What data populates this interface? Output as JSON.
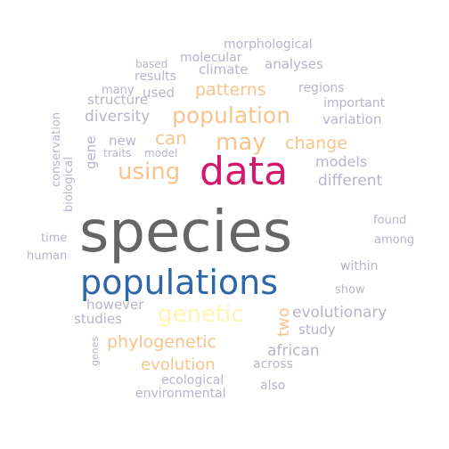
{
  "words": [
    {
      "text": "species",
      "color": "#666666"
    },
    {
      "text": "populations",
      "color": "#2e67a8"
    },
    {
      "text": "data",
      "color": "#d4186c"
    },
    {
      "text": "genetic",
      "color": "#fff4b0"
    },
    {
      "text": "population",
      "color": "#f7c48c"
    },
    {
      "text": "may",
      "color": "#f7c48c"
    },
    {
      "text": "using",
      "color": "#f7c48c"
    },
    {
      "text": "can",
      "color": "#f7c48c"
    },
    {
      "text": "patterns",
      "color": "#f7c48c"
    },
    {
      "text": "change",
      "color": "#f7c48c"
    },
    {
      "text": "phylogenetic",
      "color": "#f7c48c"
    },
    {
      "text": "evolution",
      "color": "#f7c48c"
    },
    {
      "text": "two",
      "color": "#f7c48c"
    },
    {
      "text": "evolutionary",
      "color": "#b9b4cc"
    },
    {
      "text": "different",
      "color": "#b9b4cc"
    },
    {
      "text": "models",
      "color": "#b9b4cc"
    },
    {
      "text": "diversity",
      "color": "#b9b4cc"
    },
    {
      "text": "african",
      "color": "#b9b4cc"
    },
    {
      "text": "study",
      "color": "#b9b4cc"
    },
    {
      "text": "however",
      "color": "#b9b4cc"
    },
    {
      "text": "studies",
      "color": "#b9b4cc"
    },
    {
      "text": "ecological",
      "color": "#b9b4cc"
    },
    {
      "text": "environmental",
      "color": "#b9b4cc"
    },
    {
      "text": "across",
      "color": "#b9b4cc"
    },
    {
      "text": "also",
      "color": "#b9b4cc"
    },
    {
      "text": "within",
      "color": "#b9b4cc"
    },
    {
      "text": "show",
      "color": "#b9b4cc"
    },
    {
      "text": "found",
      "color": "#b9b4cc"
    },
    {
      "text": "among",
      "color": "#b9b4cc"
    },
    {
      "text": "time",
      "color": "#b9b4cc"
    },
    {
      "text": "human",
      "color": "#b9b4cc"
    },
    {
      "text": "new",
      "color": "#b9b4cc"
    },
    {
      "text": "traits",
      "color": "#b9b4cc"
    },
    {
      "text": "model",
      "color": "#b9b4cc"
    },
    {
      "text": "structure",
      "color": "#b9b4cc"
    },
    {
      "text": "used",
      "color": "#b9b4cc"
    },
    {
      "text": "many",
      "color": "#b9b4cc"
    },
    {
      "text": "results",
      "color": "#b9b4cc"
    },
    {
      "text": "based",
      "color": "#b9b4cc"
    },
    {
      "text": "molecular",
      "color": "#b9b4cc"
    },
    {
      "text": "climate",
      "color": "#b9b4cc"
    },
    {
      "text": "morphological",
      "color": "#b9b4cc"
    },
    {
      "text": "analyses",
      "color": "#b9b4cc"
    },
    {
      "text": "regions",
      "color": "#b9b4cc"
    },
    {
      "text": "important",
      "color": "#b9b4cc"
    },
    {
      "text": "variation",
      "color": "#b9b4cc"
    },
    {
      "text": "gene",
      "color": "#b9b4cc"
    },
    {
      "text": "conservation",
      "color": "#b9b4cc"
    },
    {
      "text": "biological",
      "color": "#b9b4cc"
    },
    {
      "text": "genes",
      "color": "#b9b4cc"
    }
  ]
}
